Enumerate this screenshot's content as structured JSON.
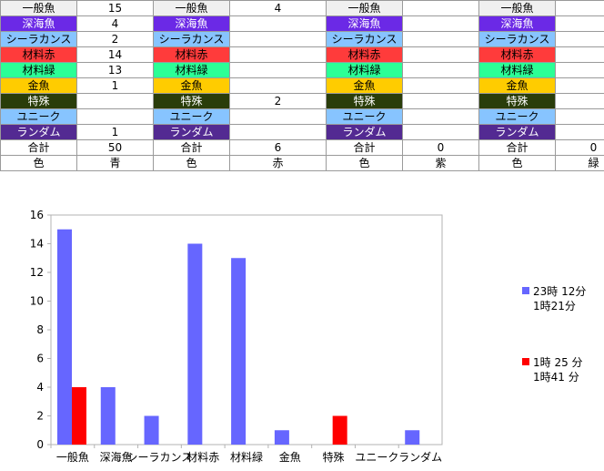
{
  "sheet": {
    "colors": {
      "一般魚": "#f0f0f0",
      "深海魚": "#6b29e6",
      "シーラカンス": "#87c4ff",
      "材料赤": "#ff3b3b",
      "材料緑": "#2bff96",
      "金魚": "#ffcc00",
      "特殊": "#2a3d0a",
      "ユニーク": "#87c4ff",
      "ランダム": "#532a92"
    },
    "text_colors": {
      "一般魚": "#000000",
      "深海魚": "#ffffff",
      "シーラカンス": "#000000",
      "材料赤": "#000000",
      "材料緑": "#000000",
      "金魚": "#000000",
      "特殊": "#ffffff",
      "ユニーク": "#000000",
      "ランダム": "#ffffff"
    },
    "fish_rows": [
      {
        "label": "一般魚",
        "values": [
          "15",
          "4",
          "",
          ""
        ]
      },
      {
        "label": "深海魚",
        "values": [
          "4",
          "",
          "",
          ""
        ]
      },
      {
        "label": "シーラカンス",
        "values": [
          "2",
          "",
          "",
          ""
        ]
      },
      {
        "label": "材料赤",
        "values": [
          "14",
          "",
          "",
          ""
        ]
      },
      {
        "label": "材料緑",
        "values": [
          "13",
          "",
          "",
          ""
        ]
      },
      {
        "label": "金魚",
        "values": [
          "1",
          "",
          "",
          ""
        ]
      },
      {
        "label": "特殊",
        "values": [
          "",
          "2",
          "",
          ""
        ]
      },
      {
        "label": "ユニーク",
        "values": [
          "",
          "",
          "",
          ""
        ]
      },
      {
        "label": "ランダム",
        "values": [
          "1",
          "",
          "",
          ""
        ]
      }
    ],
    "total_label": "合計",
    "totals": [
      "50",
      "6",
      "0",
      "0"
    ],
    "color_label": "色",
    "color_names": [
      "青",
      "赤",
      "紫",
      "緑"
    ]
  },
  "chart_data": {
    "type": "bar",
    "categories": [
      "一般魚",
      "深海魚",
      "シーラカンス",
      "材料赤",
      "材料緑",
      "金魚",
      "特殊",
      "ユニーク",
      "ランダム"
    ],
    "series": [
      {
        "name": "23時 12分 1時21分",
        "color": "#6666ff",
        "values": [
          15,
          4,
          2,
          14,
          13,
          1,
          0,
          0,
          1
        ]
      },
      {
        "name": "1時 25 分 1時41 分",
        "color": "#ff0000",
        "values": [
          4,
          0,
          0,
          0,
          0,
          0,
          2,
          0,
          0
        ]
      }
    ],
    "legend_lines": [
      [
        "23時 12分",
        "1時21分"
      ],
      [
        "1時 25 分",
        "1時41 分"
      ]
    ],
    "ylim": [
      0,
      16
    ],
    "yticks": [
      "0",
      "2",
      "4",
      "6",
      "8",
      "10",
      "12",
      "14",
      "16"
    ],
    "grid": false,
    "legend_position": "right"
  }
}
